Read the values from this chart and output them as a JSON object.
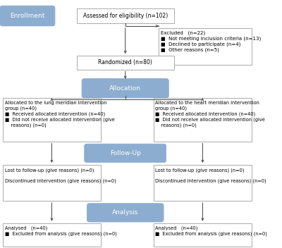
{
  "bg_color": "#ffffff",
  "header_bg": "#8dadd0",
  "header_text_color": "#ffffff",
  "box_bg": "#ffffff",
  "box_edge": "#aaaaaa",
  "arrow_color": "#555555",
  "enrollment_label": "Enrollment",
  "allocation_label": "Allocation",
  "followup_label": "Follow-Up",
  "analysis_label": "Analysis",
  "assess_text": "Assessed for eligibility (n=102)",
  "excluded_text": "Excluded   (n=22)\n■  Not meeting inclusion criteria (n=13)\n■  Declined to participate (n=4)\n■  Other reasons (n=5)",
  "randomized_text": "Randomized (n=80)",
  "lung_alloc_text": "Allocated to the lung meridian intervention\ngroup (n=40)\n■  Received allocated intervention (n=40)\n■  Did not receive allocated intervention (give\n    reasons) (n=0)",
  "heart_alloc_text": "Allocated to the heart meridian intervention\ngroup (n=40)\n■  Received allocated intervention (n=40)\n■  Did not receive allocated intervention (give\n    reasons) (n=0)",
  "lung_followup_text": "Lost to follow-up (give reasons) (n=0)\n\nDiscontinued intervention (give reasons) (n=0)",
  "heart_followup_text": "Lost to follow-up (give reasons) (n=0)\n\nDiscontinued intervention (give reasons) (n=0)",
  "lung_analysis_text": "Analysed   (n=40)\n■  Excluded from analysis (give reasons) (n=0)",
  "heart_analysis_text": "Analysed   (n=40)\n■  Excluded from analysis (give reasons) (n=0)"
}
